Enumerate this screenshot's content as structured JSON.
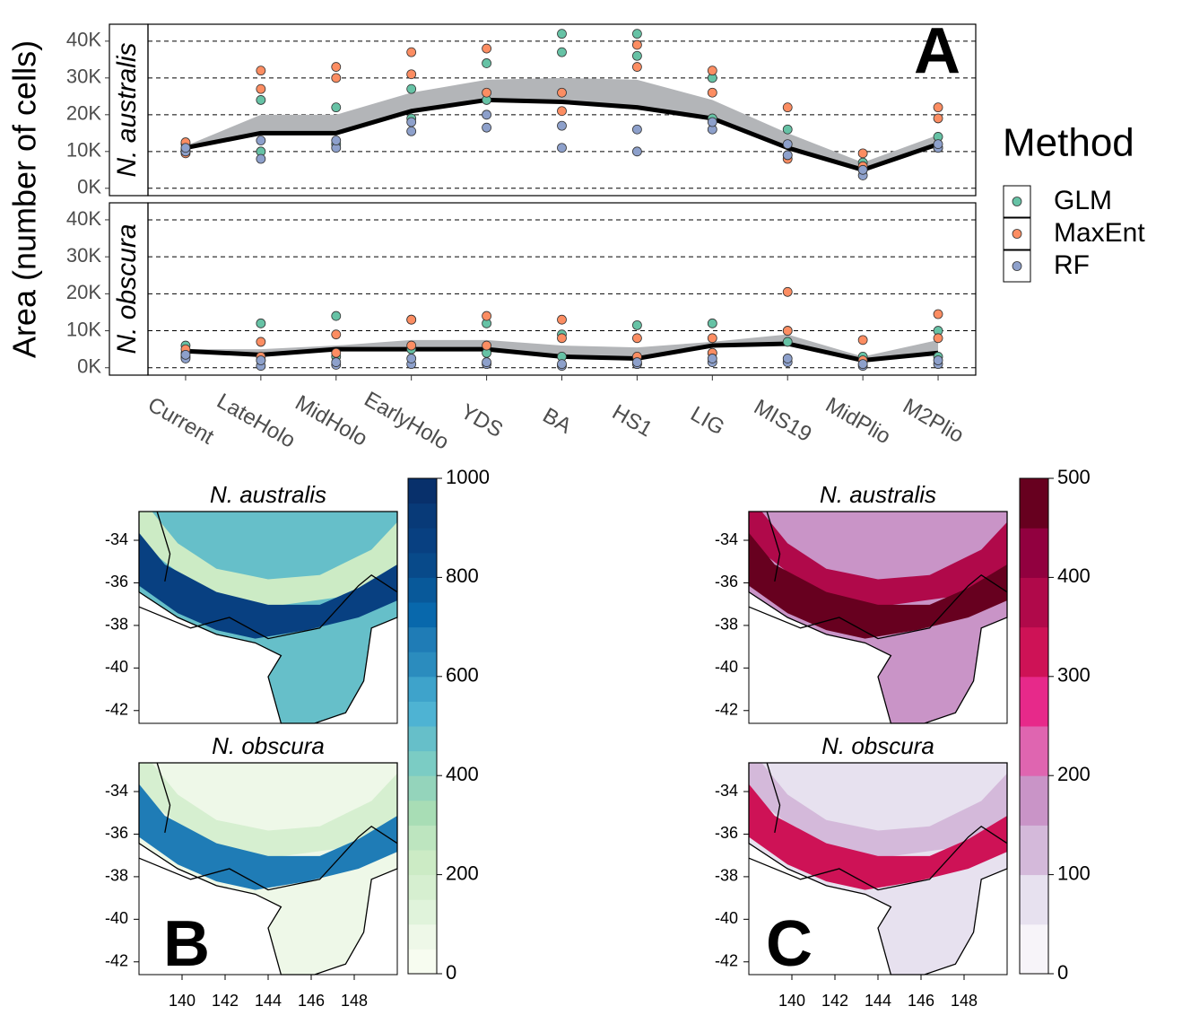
{
  "panel_a": {
    "type": "line",
    "label": "A",
    "y_label": "Area (number of cells)",
    "categories": [
      "Current",
      "LateHolo",
      "MidHolo",
      "EarlyHolo",
      "YDS",
      "BA",
      "HS1",
      "LIG",
      "MIS19",
      "MidPlio",
      "M2Plio"
    ],
    "ylim": [
      -2000,
      44600
    ],
    "yticks": [
      {
        "value": 0,
        "label": "0K"
      },
      {
        "value": 10000,
        "label": "10K"
      },
      {
        "value": 20000,
        "label": "20K"
      },
      {
        "value": 30000,
        "label": "30K"
      },
      {
        "value": 40000,
        "label": "40K"
      }
    ],
    "grid": true,
    "mean_color": "#000000",
    "ribbon_color": "#b3b5b8",
    "legend": {
      "title": "Method"
    },
    "facets": [
      {
        "name": "N. australis",
        "mean": [
          11000,
          15000,
          15000,
          21000,
          24000,
          23500,
          22000,
          19000,
          11000,
          5000,
          12000
        ],
        "ribbon": [
          11500,
          20000,
          20000,
          26000,
          29500,
          30000,
          29500,
          24000,
          15000,
          7000,
          14500
        ],
        "series": [
          {
            "name": "GLM",
            "color": "#66c2a5",
            "values": [
              [
                10500,
                12000
              ],
              [
                10000,
                24000
              ],
              [
                12000,
                22000
              ],
              [
                19000,
                27000
              ],
              [
                24000,
                34000
              ],
              [
                37000,
                42000
              ],
              [
                36000,
                42000
              ],
              [
                19000,
                30000
              ],
              [
                9000,
                16000
              ],
              [
                5000,
                7000
              ],
              [
                11000,
                14000
              ]
            ]
          },
          {
            "name": "MaxEnt",
            "color": "#fc8d62",
            "values": [
              [
                9500,
                12500
              ],
              [
                27000,
                32000
              ],
              [
                30000,
                33000
              ],
              [
                31000,
                37000
              ],
              [
                26000,
                38000
              ],
              [
                21000,
                26000
              ],
              [
                33000,
                39000
              ],
              [
                26000,
                32000
              ],
              [
                8000,
                22000
              ],
              [
                6000,
                9500
              ],
              [
                19000,
                22000
              ]
            ]
          },
          {
            "name": "RF",
            "color": "#8da0cb",
            "values": [
              [
                10000,
                11000
              ],
              [
                8000,
                13000
              ],
              [
                11000,
                13000
              ],
              [
                15500,
                18000
              ],
              [
                16500,
                20000
              ],
              [
                11000,
                17000
              ],
              [
                10000,
                16000
              ],
              [
                16000,
                18000
              ],
              [
                9000,
                12000
              ],
              [
                3500,
                5000
              ],
              [
                11000,
                12000
              ]
            ]
          }
        ]
      },
      {
        "name": "N. obscura",
        "mean": [
          4500,
          3500,
          5000,
          5000,
          5000,
          3000,
          2500,
          6000,
          6500,
          2000,
          4000
        ],
        "ribbon": [
          5000,
          5000,
          6000,
          7500,
          7500,
          6000,
          5500,
          7000,
          9000,
          3000,
          7500
        ],
        "series": [
          {
            "name": "GLM",
            "color": "#66c2a5",
            "values": [
              [
                4000,
                6000
              ],
              [
                2000,
                12000
              ],
              [
                3000,
                14000
              ],
              [
                5000,
                13000
              ],
              [
                4000,
                12000
              ],
              [
                3000,
                9000
              ],
              [
                1000,
                11500
              ],
              [
                4000,
                12000
              ],
              [
                7000,
                10000
              ],
              [
                1000,
                3000
              ],
              [
                3000,
                10000
              ]
            ]
          },
          {
            "name": "MaxEnt",
            "color": "#fc8d62",
            "values": [
              [
                3000,
                5000
              ],
              [
                3000,
                7000
              ],
              [
                4000,
                9000
              ],
              [
                6000,
                13000
              ],
              [
                6000,
                14000
              ],
              [
                8000,
                13000
              ],
              [
                3000,
                8000
              ],
              [
                4000,
                8000
              ],
              [
                10000,
                20500
              ],
              [
                2000,
                7500
              ],
              [
                8000,
                14500
              ]
            ]
          },
          {
            "name": "RF",
            "color": "#8da0cb",
            "values": [
              [
                2500,
                3500
              ],
              [
                500,
                2000
              ],
              [
                800,
                1500
              ],
              [
                1000,
                2500
              ],
              [
                1000,
                1500
              ],
              [
                500,
                1000
              ],
              [
                1000,
                1500
              ],
              [
                1500,
                2500
              ],
              [
                1500,
                2500
              ],
              [
                500,
                1000
              ],
              [
                1000,
                2000
              ]
            ]
          }
        ]
      }
    ]
  },
  "map_axes": {
    "xlim": [
      138,
      150
    ],
    "ylim": [
      -42.6,
      -32.65
    ],
    "xticks": [
      140,
      142,
      144,
      146,
      148
    ],
    "yticks": [
      -34,
      -36,
      -38,
      -40,
      -42
    ]
  },
  "panel_b": {
    "label": "B",
    "maps": [
      {
        "title": "N. australis"
      },
      {
        "title": "N. obscura"
      }
    ],
    "clim": [
      0,
      1000
    ],
    "cticks": [
      0,
      200,
      400,
      600,
      800,
      1000
    ],
    "colors": [
      "#f7fcf0",
      "#eef8e8",
      "#e0f3db",
      "#d6efd0",
      "#ccebc5",
      "#bde5bf",
      "#a8ddb5",
      "#94d4bb",
      "#7bccc4",
      "#66bfc9",
      "#4eb3d3",
      "#3ea3cb",
      "#2b8cbe",
      "#1f7cb6",
      "#0868ac",
      "#08599a",
      "#084a8a",
      "#084081",
      "#083a78",
      "#08306b"
    ]
  },
  "panel_c": {
    "label": "C",
    "maps": [
      {
        "title": "N. australis"
      },
      {
        "title": "N. obscura"
      }
    ],
    "clim": [
      0,
      500
    ],
    "cticks": [
      0,
      100,
      200,
      300,
      400,
      500
    ],
    "colors": [
      "#f7f4f9",
      "#e7e1ef",
      "#d4b9da",
      "#c994c7",
      "#df65b0",
      "#e7298a",
      "#ce1256",
      "#b0094a",
      "#91003f",
      "#67001f"
    ]
  }
}
